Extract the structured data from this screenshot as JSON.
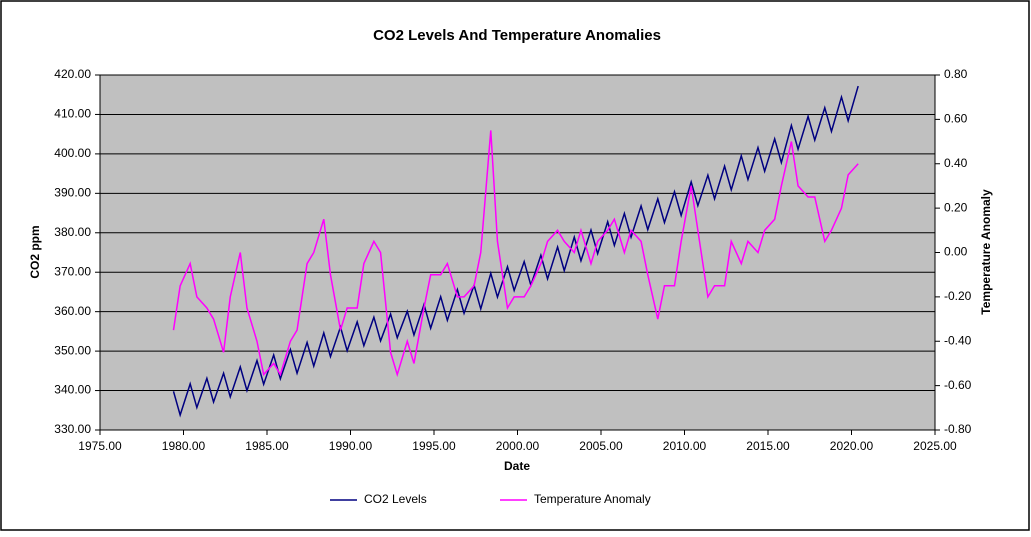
{
  "chart_data": {
    "type": "line",
    "title": "CO2 Levels And Temperature Anomalies",
    "x_label": "Date",
    "y_label": "CO2 ppm",
    "y2_label": "Temperature Anomaly",
    "x": [
      1979.4,
      1979.8,
      1980.4,
      1980.8,
      1981.4,
      1981.8,
      1982.4,
      1982.8,
      1983.4,
      1983.8,
      1984.4,
      1984.8,
      1985.4,
      1985.8,
      1986.4,
      1986.8,
      1987.4,
      1987.8,
      1988.4,
      1988.8,
      1989.4,
      1989.8,
      1990.4,
      1990.8,
      1991.4,
      1991.8,
      1992.4,
      1992.8,
      1993.4,
      1993.8,
      1994.4,
      1994.8,
      1995.4,
      1995.8,
      1996.4,
      1996.8,
      1997.4,
      1997.8,
      1998.4,
      1998.8,
      1999.4,
      1999.8,
      2000.4,
      2000.8,
      2001.4,
      2001.8,
      2002.4,
      2002.8,
      2003.4,
      2003.8,
      2004.4,
      2004.8,
      2005.4,
      2005.8,
      2006.4,
      2006.8,
      2007.4,
      2007.8,
      2008.4,
      2008.8,
      2009.4,
      2009.8,
      2010.4,
      2010.8,
      2011.4,
      2011.8,
      2012.4,
      2012.8,
      2013.4,
      2013.8,
      2014.4,
      2014.8,
      2015.4,
      2015.8,
      2016.4,
      2016.8,
      2017.4,
      2017.8,
      2018.4,
      2018.8,
      2019.4,
      2019.8,
      2020.4
    ],
    "series": [
      {
        "name": "CO2 Levels",
        "color": "#000080",
        "axis": "y",
        "values": [
          339.8,
          333.8,
          341.7,
          335.7,
          343.1,
          337.1,
          344.4,
          338.4,
          346.0,
          340.0,
          347.6,
          341.6,
          349.0,
          343.0,
          350.4,
          344.4,
          352.2,
          346.2,
          354.6,
          348.6,
          356.1,
          350.1,
          357.4,
          351.4,
          358.6,
          352.6,
          359.4,
          353.4,
          360.1,
          354.1,
          361.8,
          355.8,
          363.8,
          357.8,
          365.6,
          359.6,
          366.7,
          360.7,
          369.7,
          363.7,
          371.4,
          365.4,
          372.7,
          366.7,
          374.3,
          368.3,
          376.4,
          370.4,
          378.9,
          372.9,
          380.7,
          374.7,
          382.8,
          376.8,
          384.9,
          378.9,
          386.8,
          380.8,
          388.6,
          382.6,
          390.4,
          384.4,
          392.9,
          386.9,
          394.6,
          388.6,
          396.9,
          390.9,
          399.5,
          393.5,
          401.6,
          395.6,
          403.8,
          397.8,
          407.2,
          401.2,
          409.5,
          403.5,
          411.7,
          405.7,
          414.4,
          408.4,
          417.2
        ]
      },
      {
        "name": "Temperature Anomaly",
        "color": "#ff00ff",
        "axis": "y2",
        "values": [
          -0.35,
          -0.15,
          -0.05,
          -0.2,
          -0.25,
          -0.3,
          -0.45,
          -0.2,
          0.0,
          -0.25,
          -0.4,
          -0.55,
          -0.5,
          -0.55,
          -0.4,
          -0.35,
          -0.05,
          0.0,
          0.15,
          -0.1,
          -0.35,
          -0.25,
          -0.25,
          -0.05,
          0.05,
          0.0,
          -0.45,
          -0.55,
          -0.4,
          -0.5,
          -0.25,
          -0.1,
          -0.1,
          -0.05,
          -0.2,
          -0.2,
          -0.15,
          0.0,
          0.55,
          0.05,
          -0.25,
          -0.2,
          -0.2,
          -0.15,
          -0.05,
          0.05,
          0.1,
          0.05,
          0.0,
          0.1,
          -0.05,
          0.05,
          0.1,
          0.15,
          0.0,
          0.1,
          0.05,
          -0.1,
          -0.3,
          -0.15,
          -0.15,
          0.05,
          0.3,
          0.1,
          -0.2,
          -0.15,
          -0.15,
          0.05,
          -0.05,
          0.05,
          0.0,
          0.1,
          0.15,
          0.3,
          0.5,
          0.3,
          0.25,
          0.25,
          0.05,
          0.1,
          0.2,
          0.35,
          0.4
        ]
      }
    ],
    "xlim": [
      1975,
      2025
    ],
    "xticks": [
      {
        "value": 1975,
        "label": "1975.00"
      },
      {
        "value": 1980,
        "label": "1980.00"
      },
      {
        "value": 1985,
        "label": "1985.00"
      },
      {
        "value": 1990,
        "label": "1990.00"
      },
      {
        "value": 1995,
        "label": "1995.00"
      },
      {
        "value": 2000,
        "label": "2000.00"
      },
      {
        "value": 2005,
        "label": "2005.00"
      },
      {
        "value": 2010,
        "label": "2010.00"
      },
      {
        "value": 2015,
        "label": "2015.00"
      },
      {
        "value": 2020,
        "label": "2020.00"
      },
      {
        "value": 2025,
        "label": "2025.00"
      }
    ],
    "ylim": [
      330,
      420
    ],
    "yticks": [
      {
        "value": 330,
        "label": "330.00"
      },
      {
        "value": 340,
        "label": "340.00"
      },
      {
        "value": 350,
        "label": "350.00"
      },
      {
        "value": 360,
        "label": "360.00"
      },
      {
        "value": 370,
        "label": "370.00"
      },
      {
        "value": 380,
        "label": "380.00"
      },
      {
        "value": 390,
        "label": "390.00"
      },
      {
        "value": 400,
        "label": "400.00"
      },
      {
        "value": 410,
        "label": "410.00"
      },
      {
        "value": 420,
        "label": "420.00"
      }
    ],
    "y2lim": [
      -0.8,
      0.8
    ],
    "y2ticks": [
      {
        "value": -0.8,
        "label": "-0.80"
      },
      {
        "value": -0.6,
        "label": "-0.60"
      },
      {
        "value": -0.4,
        "label": "-0.40"
      },
      {
        "value": -0.2,
        "label": "-0.20"
      },
      {
        "value": 0,
        "label": "0.00"
      },
      {
        "value": 0.2,
        "label": "0.20"
      },
      {
        "value": 0.4,
        "label": "0.40"
      },
      {
        "value": 0.6,
        "label": "0.60"
      },
      {
        "value": 0.8,
        "label": "0.80"
      }
    ],
    "grid": true,
    "legend": "bottom",
    "plot_background": "#c0c0c0"
  }
}
